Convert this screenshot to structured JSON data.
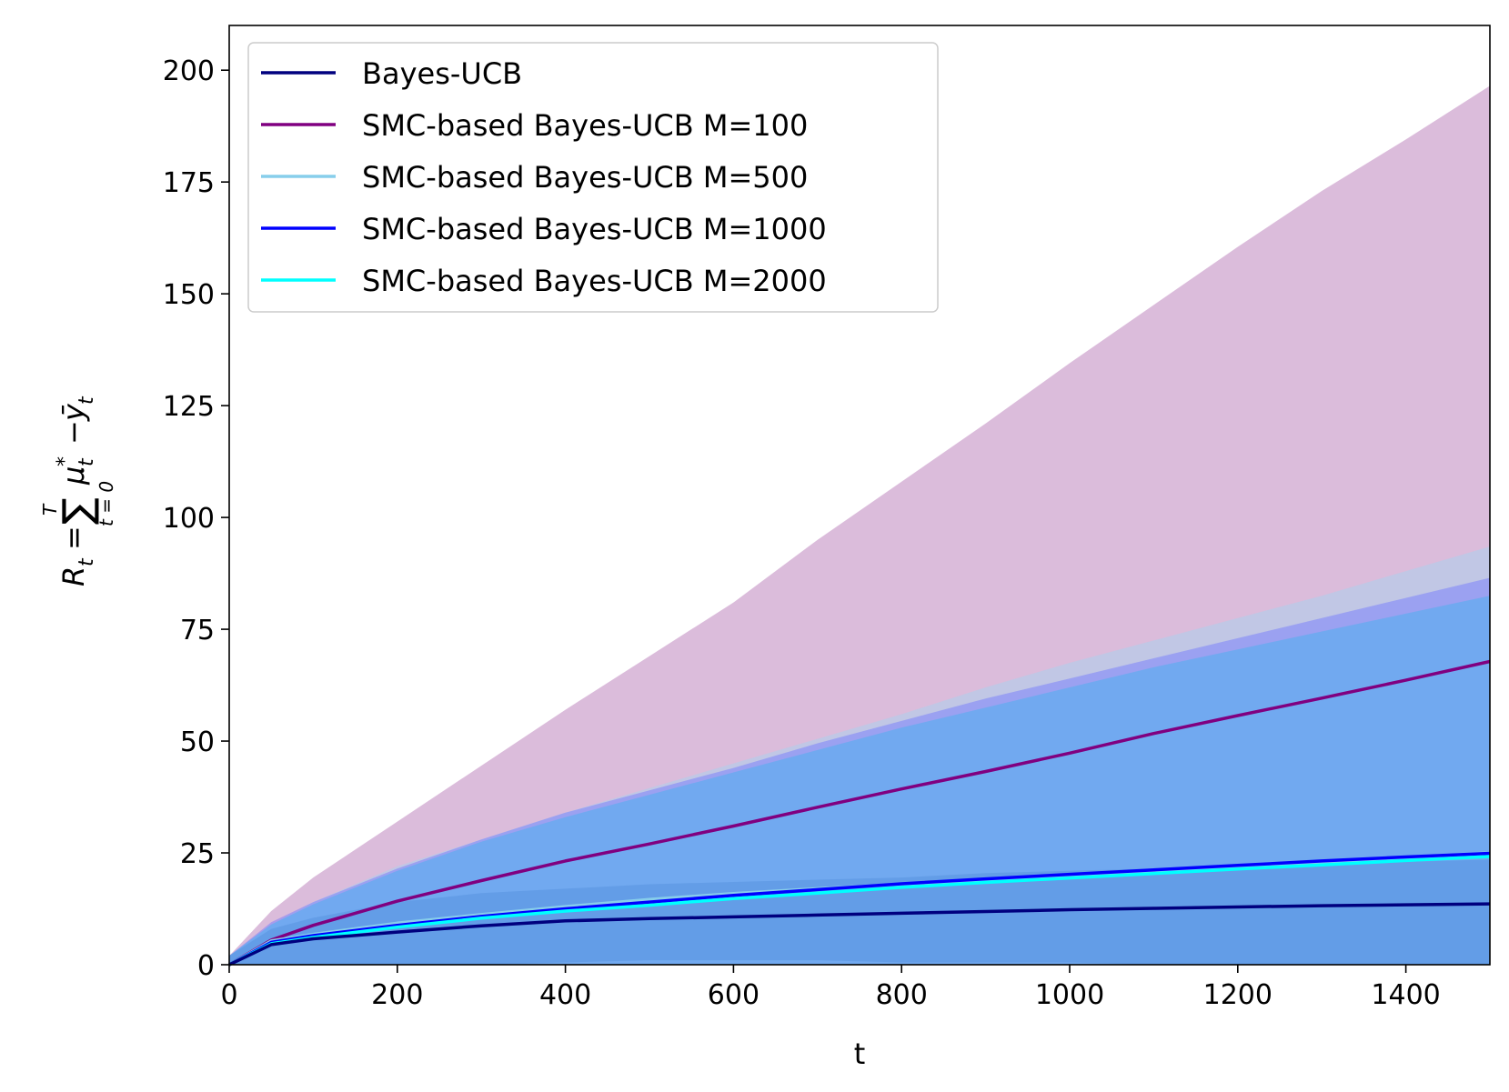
{
  "chart_data": {
    "type": "line",
    "title": "",
    "xlabel": "t",
    "ylabel": {
      "lhs": "R",
      "lhs_sub": "t",
      "equals": "=",
      "sum": "∑",
      "sum_sup": "T",
      "sum_sub": "t = 0",
      "term1": "μ",
      "term1_sup": "*",
      "term1_sub": "t",
      "minus": "−",
      "term2": "ȳ",
      "term2_sub": "t"
    },
    "xlim": [
      0,
      1500
    ],
    "ylim": [
      0,
      210
    ],
    "xticks": [
      0,
      200,
      400,
      600,
      800,
      1000,
      1200,
      1400
    ],
    "xtick_labels": [
      "0",
      "200",
      "400",
      "600",
      "800",
      "1000",
      "1200",
      "1400"
    ],
    "yticks": [
      0,
      25,
      50,
      75,
      100,
      125,
      150,
      175,
      200
    ],
    "ytick_labels": [
      "0",
      "25",
      "50",
      "75",
      "100",
      "125",
      "150",
      "175",
      "200"
    ],
    "grid": false,
    "legend_position": "top-left",
    "x": [
      0,
      50,
      100,
      200,
      300,
      400,
      500,
      600,
      700,
      800,
      900,
      1000,
      1100,
      1200,
      1300,
      1400,
      1500
    ],
    "series": [
      {
        "name": "Bayes-UCB",
        "color": "#00007f",
        "values": [
          0,
          4.5,
          5.8,
          7.3,
          8.7,
          9.8,
          10.3,
          10.7,
          11.1,
          11.5,
          11.9,
          12.3,
          12.6,
          12.9,
          13.2,
          13.4,
          13.6
        ],
        "band_color": "#5e98e3",
        "band_opacity": 0.7,
        "lower": [
          0,
          0,
          0,
          0,
          0,
          0.5,
          1,
          1,
          1,
          0.5,
          0.5,
          0.5,
          0,
          0,
          0,
          0,
          0
        ],
        "upper": [
          2,
          8,
          10.5,
          14,
          16,
          17,
          18,
          18.5,
          19,
          19.5,
          20.5,
          21,
          21.5,
          22,
          22.5,
          23,
          23.5
        ]
      },
      {
        "name": "SMC-based Bayes-UCB M=100",
        "color": "#800080",
        "values": [
          0,
          5.5,
          8.8,
          14.2,
          18.8,
          23.2,
          27,
          31,
          35.2,
          39.3,
          43.2,
          47.3,
          51.7,
          55.7,
          59.6,
          63.6,
          67.8
        ],
        "band_color": "#c390c3",
        "band_opacity": 0.6,
        "lower": [
          0,
          0,
          0,
          0,
          0,
          0,
          0,
          0,
          0,
          0,
          0,
          0,
          0,
          0,
          0,
          0,
          0
        ],
        "upper": [
          2,
          12,
          19.5,
          32,
          44.5,
          57,
          69,
          81,
          95,
          108,
          121,
          134.5,
          147.5,
          160.5,
          173,
          184.5,
          196.5
        ]
      },
      {
        "name": "SMC-based Bayes-UCB M=500",
        "color": "#87ceeb",
        "values": [
          0,
          5.3,
          6.8,
          9.3,
          11.2,
          13,
          14.6,
          15.9,
          17,
          18,
          19,
          20,
          21,
          21.9,
          23,
          24,
          25
        ],
        "band_color": "#afcfeb",
        "band_opacity": 0.6,
        "lower": [
          0,
          0,
          0,
          0,
          0,
          0,
          0,
          0,
          0,
          0,
          0,
          0,
          0,
          0,
          0,
          0,
          0
        ],
        "upper": [
          2,
          9,
          14,
          22,
          28,
          34,
          39.5,
          45,
          50.5,
          56,
          62,
          67.5,
          72.5,
          77.5,
          82.5,
          88,
          93.5
        ]
      },
      {
        "name": "SMC-based Bayes-UCB M=1000",
        "color": "#0000ff",
        "values": [
          0,
          5,
          6.5,
          8.8,
          10.8,
          12.5,
          14,
          15.5,
          16.8,
          18.1,
          19.2,
          20.2,
          21.2,
          22.2,
          23.2,
          24.1,
          24.9
        ],
        "band_color": "#6d73ff",
        "band_opacity": 0.45,
        "lower": [
          0,
          0,
          0,
          0,
          0,
          0,
          0,
          0,
          0,
          0,
          0,
          0,
          0,
          0,
          0,
          0,
          0
        ],
        "upper": [
          2,
          9.5,
          14,
          21.5,
          28,
          34,
          39,
          44,
          49.5,
          54.5,
          59.5,
          64,
          68.5,
          73,
          77.5,
          82,
          86.5
        ]
      },
      {
        "name": "SMC-based Bayes-UCB M=2000",
        "color": "#00ffff",
        "values": [
          0,
          4.7,
          6.1,
          8.4,
          10.4,
          12,
          13.3,
          14.8,
          16,
          17.3,
          18.4,
          19.4,
          20.4,
          21.4,
          22.3,
          23.3,
          24.2
        ],
        "band_color": "#5aaef0",
        "band_opacity": 0.65,
        "lower": [
          0,
          0,
          0,
          0,
          0,
          0,
          0,
          0,
          0,
          0,
          0,
          0,
          0,
          0,
          0,
          0,
          0
        ],
        "upper": [
          2,
          9,
          13.5,
          21,
          27.5,
          33,
          38,
          43,
          48,
          53,
          57.5,
          62,
          66.5,
          70.5,
          74.5,
          78.5,
          82.5
        ]
      }
    ]
  }
}
